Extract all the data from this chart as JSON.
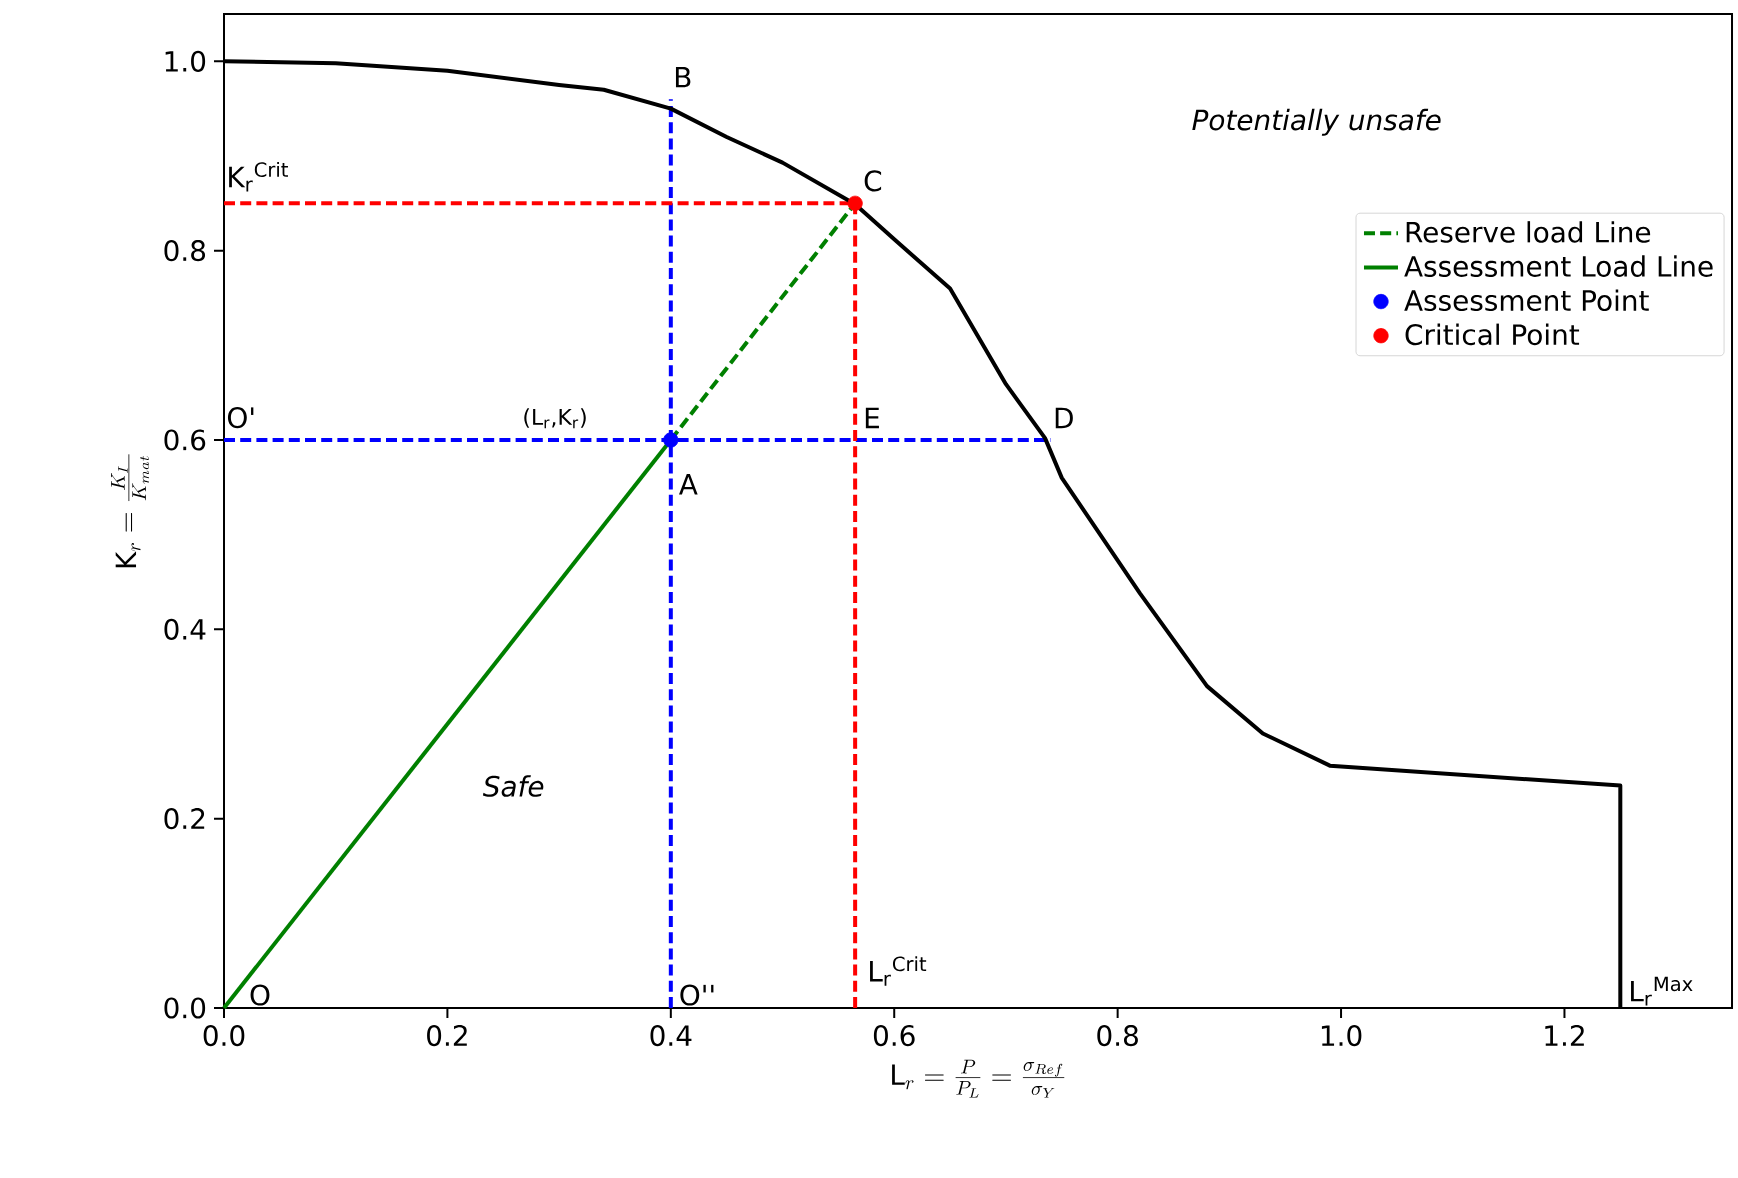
{
  "chart_data": {
    "type": "line",
    "xlabel": "\\mathrm{L}_r = \\frac{P}{P_L} = \\frac{\\sigma_{Ref}}{\\sigma_Y}",
    "ylabel": "\\mathrm{K}_r = \\frac{K_I}{K_{mat}}",
    "xlim": [
      0,
      1.35
    ],
    "ylim": [
      0,
      1.05
    ],
    "xticks": [
      {
        "value": 0,
        "label": "0.0"
      },
      0.2,
      0.4,
      0.6,
      0.8,
      {
        "value": 1,
        "label": "1.0"
      },
      1.2
    ],
    "yticks": [
      {
        "value": 0,
        "label": "0.0"
      },
      0.2,
      0.4,
      0.6,
      0.8,
      {
        "value": 1,
        "label": "1.0"
      }
    ],
    "grid": false,
    "legend": "right",
    "series": [
      {
        "color": "#0000ff",
        "line_style": "dashed",
        "x": [
          0,
          0.74
        ],
        "values": [
          0.6,
          0.6
        ]
      },
      {
        "color": "#0000ff",
        "line_style": "dashed",
        "x": [
          0.4,
          0.4
        ],
        "values": [
          0,
          0.96
        ]
      },
      {
        "color": "#ff0000",
        "line_style": "dashed",
        "x": [
          0,
          0.565
        ],
        "values": [
          0.85,
          0.85
        ]
      },
      {
        "color": "#ff0000",
        "line_style": "dashed",
        "x": [
          0.565,
          0.565
        ],
        "values": [
          0,
          0.85
        ]
      },
      {
        "color": "#000000",
        "line_style": "solid",
        "x": [
          0,
          0.1,
          0.2,
          0.3,
          0.34,
          0.4,
          0.45,
          0.5,
          0.565,
          0.6,
          0.65,
          0.7,
          0.735,
          0.75,
          0.82,
          0.88,
          0.93,
          0.99,
          1.0,
          1.25,
          1.25
        ],
        "values": [
          1.0,
          0.998,
          0.99,
          0.975,
          0.97,
          0.95,
          0.92,
          0.893,
          0.849,
          0.812,
          0.76,
          0.659,
          0.602,
          0.56,
          0.438,
          0.34,
          0.29,
          0.256,
          0.255,
          0.235,
          0
        ]
      },
      {
        "name": "Reserve load Line",
        "color": "#008000",
        "line_style": "dashed",
        "x": [
          0.4,
          0.565
        ],
        "values": [
          0.6,
          0.85
        ]
      },
      {
        "name": "Assessment Load Line",
        "color": "#008000",
        "line_style": "solid",
        "x": [
          0,
          0.4
        ],
        "values": [
          0,
          0.6
        ]
      },
      {
        "type": "scatter",
        "name": "Assessment Point",
        "color": "#0000ff",
        "marker": "circle",
        "x": [
          0.4
        ],
        "values": [
          0.6
        ]
      },
      {
        "type": "scatter",
        "name": "Critical Point",
        "color": "#ff0000",
        "marker": "circle",
        "x": [
          0.565
        ],
        "values": [
          0.85
        ]
      }
    ],
    "annotations": [
      "O",
      {
        "text": "O''",
        "x": 0.405,
        "y": 0.0
      },
      "L$_{r}$$^{Crit}$",
      {
        "text": "L$_{r}$$^{Max}$",
        "x": 1.255,
        "y": 0.0
      },
      {
        "text": "O'",
        "x": 0.0,
        "y": 0.61
      },
      {
        "text": "(L$_{r}$,K$_{r}$)",
        "x": 0.265,
        "y": 0.61
      },
      {
        "text": "A",
        "x": 0.405,
        "y": 0.54
      },
      {
        "text": "E",
        "x": 0.57,
        "y": 0.61
      },
      {
        "text": "D",
        "x": 0.74,
        "y": 0.61
      },
      {
        "text": "C",
        "x": 0.57,
        "y": 0.86
      },
      {
        "text": "B",
        "x": 0.4,
        "y": 0.97
      },
      {
        "text": "K$_{r}$$^{Crit}$",
        "x": 0.0,
        "y": 0.86
      },
      "Safe",
      "Potentially unsafe"
    ]
  }
}
